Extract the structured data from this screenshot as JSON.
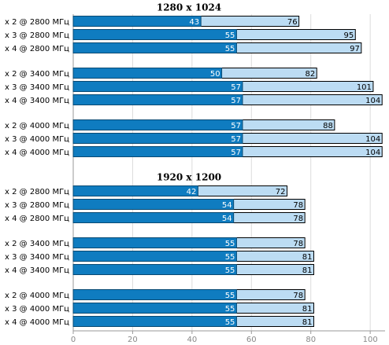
{
  "chart_data": {
    "type": "bar",
    "orientation": "horizontal",
    "grid": true,
    "xlim": [
      0,
      105
    ],
    "xticks": [
      0,
      20,
      40,
      60,
      80,
      100
    ],
    "panels": [
      {
        "title": "1280 x 1024",
        "categories": [
          "x 2 @ 2800 МГц",
          "x 3 @ 2800 МГц",
          "x 4 @ 2800 МГц",
          "x 2 @ 3400 МГц",
          "x 3 @ 3400 МГц",
          "x 4 @ 3400 МГц",
          "x 2 @ 4000 МГц",
          "x 3 @ 4000 МГц",
          "x 4 @ 4000 МГц"
        ],
        "series": [
          {
            "color": "#0f7cc0",
            "values": [
              43,
              55,
              55,
              50,
              57,
              57,
              57,
              57,
              57
            ]
          },
          {
            "color": "#bcdcf3",
            "values": [
              76,
              95,
              97,
              82,
              101,
              104,
              88,
              104,
              104
            ]
          }
        ]
      },
      {
        "title": "1920 x 1200",
        "categories": [
          "x 2 @ 2800 МГц",
          "x 3 @ 2800 МГц",
          "x 4 @ 2800 МГц",
          "x 2 @ 3400 МГц",
          "x 3 @ 3400 МГц",
          "x 4 @ 3400 МГц",
          "x 2 @ 4000 МГц",
          "x 3 @ 4000 МГц",
          "x 4 @ 4000 МГц"
        ],
        "series": [
          {
            "color": "#0f7cc0",
            "values": [
              42,
              54,
              54,
              55,
              55,
              55,
              55,
              55,
              55
            ]
          },
          {
            "color": "#bcdcf3",
            "values": [
              72,
              78,
              78,
              78,
              81,
              81,
              78,
              81,
              81
            ]
          }
        ]
      }
    ]
  }
}
